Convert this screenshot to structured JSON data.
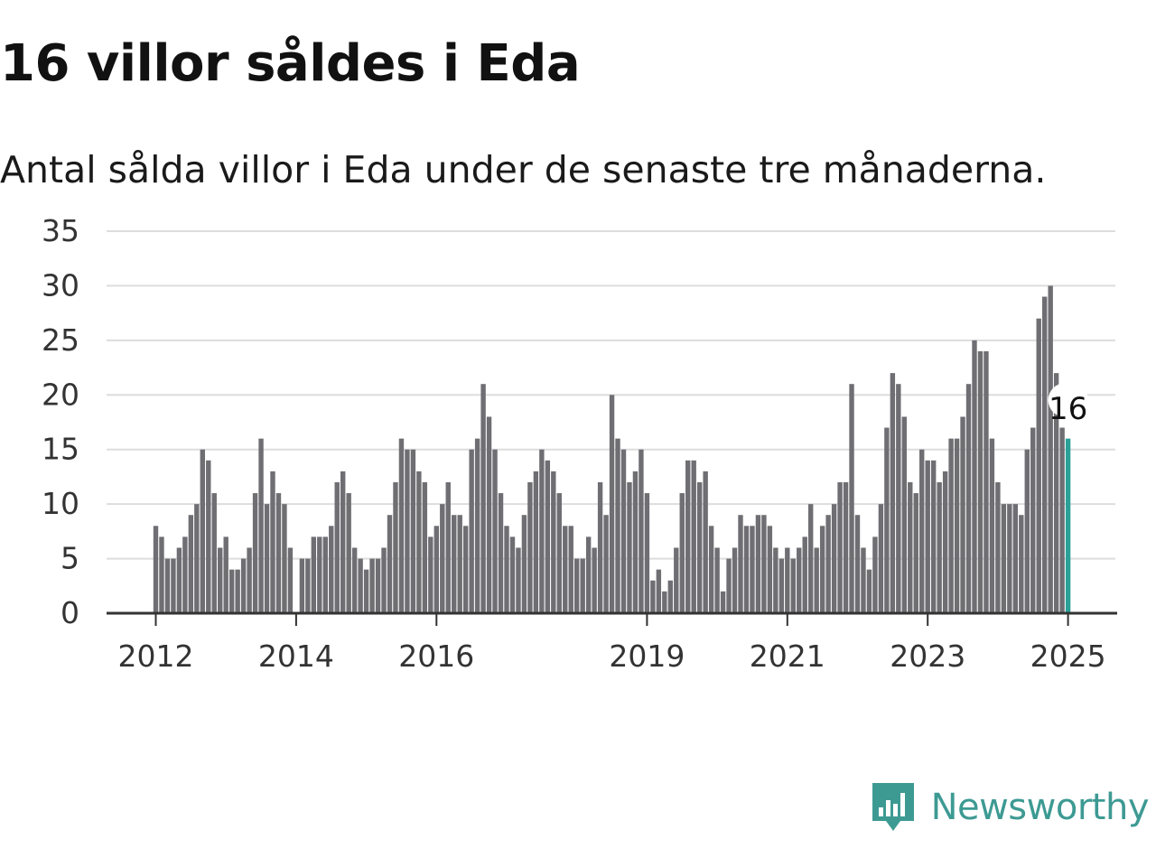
{
  "title": "16 villor såldes i Eda",
  "subtitle": "Antal sålda villor i Eda under de senaste tre månaderna.",
  "brand": {
    "name": "Newsworthy",
    "color": "#3d9a93",
    "icon": "newsworthy-logo-icon"
  },
  "colors": {
    "bar": "#6f6e73",
    "highlight": "#2aa198",
    "grid": "#dddddd",
    "axis": "#333333"
  },
  "chart_data": {
    "type": "bar",
    "title": "16 villor såldes i Eda",
    "subtitle": "Antal sålda villor i Eda under de senaste tre månaderna.",
    "xlabel": "",
    "ylabel": "",
    "ylim": [
      0,
      35
    ],
    "yticks": [
      0,
      5,
      10,
      15,
      20,
      25,
      30,
      35
    ],
    "grid": true,
    "x_start": "2012-01",
    "xtick_labels": [
      "2012",
      "2014",
      "2016",
      "2019",
      "2021",
      "2023",
      "2025"
    ],
    "values": [
      8,
      7,
      5,
      5,
      6,
      7,
      9,
      10,
      15,
      14,
      11,
      6,
      7,
      4,
      4,
      5,
      6,
      11,
      16,
      10,
      13,
      11,
      10,
      6,
      0,
      5,
      5,
      7,
      7,
      7,
      8,
      12,
      13,
      11,
      6,
      5,
      4,
      5,
      5,
      6,
      9,
      12,
      16,
      15,
      15,
      13,
      12,
      7,
      8,
      10,
      12,
      9,
      9,
      8,
      15,
      16,
      21,
      18,
      15,
      11,
      8,
      7,
      6,
      9,
      12,
      13,
      15,
      14,
      13,
      11,
      8,
      8,
      5,
      5,
      7,
      6,
      12,
      9,
      20,
      16,
      15,
      12,
      13,
      15,
      11,
      3,
      4,
      2,
      3,
      6,
      11,
      14,
      14,
      12,
      13,
      8,
      6,
      2,
      5,
      6,
      9,
      8,
      8,
      9,
      9,
      8,
      6,
      5,
      6,
      5,
      6,
      7,
      10,
      6,
      8,
      9,
      10,
      12,
      12,
      21,
      9,
      6,
      4,
      7,
      10,
      17,
      22,
      21,
      18,
      12,
      11,
      15,
      14,
      14,
      12,
      13,
      16,
      16,
      18,
      21,
      25,
      24,
      24,
      16,
      12,
      10,
      10,
      10,
      9,
      15,
      17,
      27,
      29,
      30,
      22,
      17,
      16
    ],
    "highlight": {
      "label": "16",
      "value": 16,
      "position": "last"
    }
  }
}
